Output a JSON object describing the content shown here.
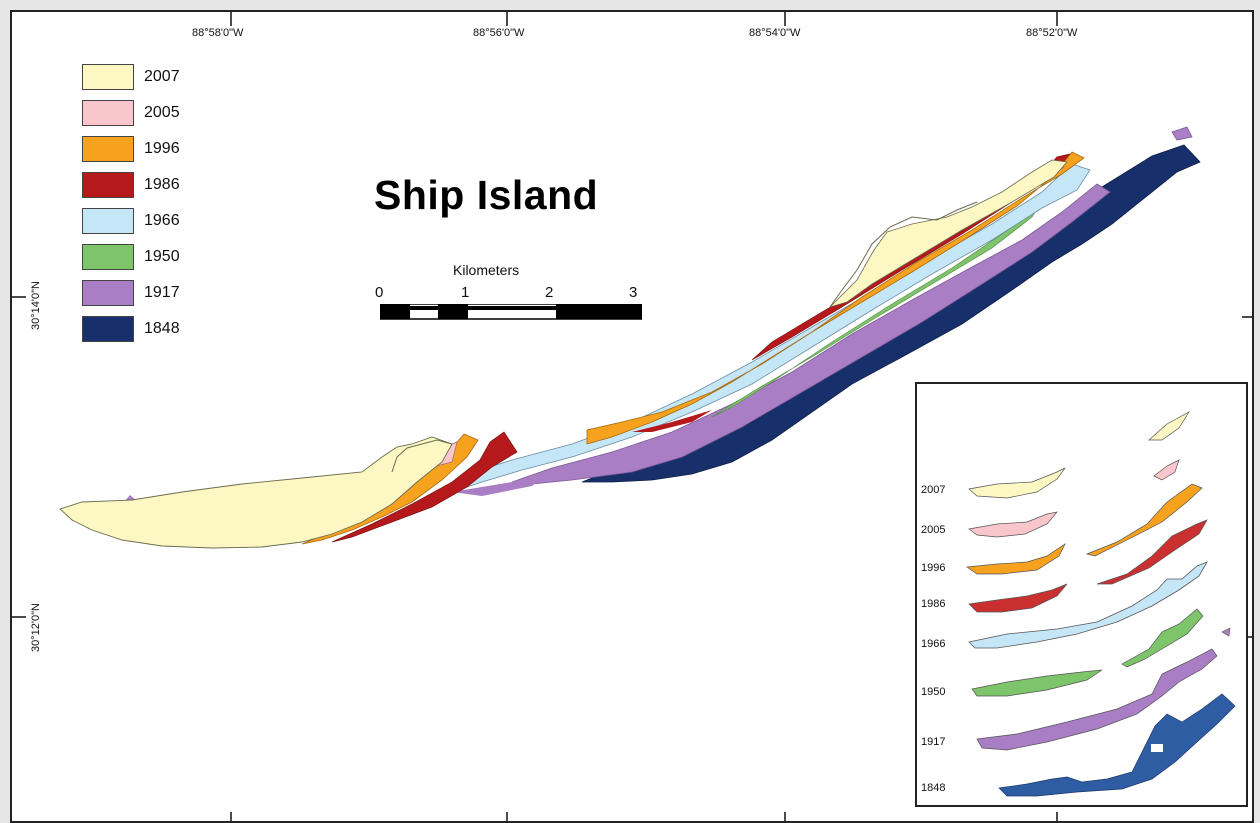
{
  "title": "Ship Island",
  "longitude_labels": [
    "88°58'0\"W",
    "88°56'0\"W",
    "88°54'0\"W",
    "88°52'0\"W"
  ],
  "latitude_labels": [
    "30°14'0\"N",
    "30°12'0\"N"
  ],
  "legend": [
    {
      "year": "2007",
      "color": "#fdf7c3"
    },
    {
      "year": "2005",
      "color": "#f9c6cc"
    },
    {
      "year": "1996",
      "color": "#f7a21e"
    },
    {
      "year": "1986",
      "color": "#b5191c"
    },
    {
      "year": "1966",
      "color": "#c5e6f7"
    },
    {
      "year": "1950",
      "color": "#7ec46b"
    },
    {
      "year": "1917",
      "color": "#a97ec4"
    },
    {
      "year": "1848",
      "color": "#17306b"
    }
  ],
  "scale": {
    "title": "Kilometers",
    "ticks": [
      "0",
      "1",
      "2",
      "3"
    ]
  },
  "inset_labels": [
    "2007",
    "2005",
    "1996",
    "1986",
    "1966",
    "1950",
    "1917",
    "1848"
  ]
}
